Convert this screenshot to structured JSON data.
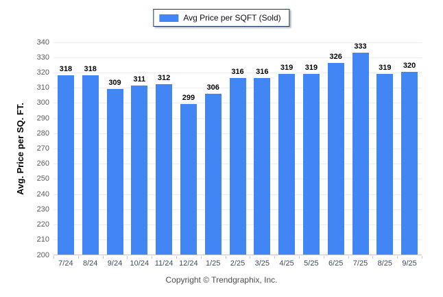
{
  "legend": {
    "label": "Avg Price per SQFT (Sold)"
  },
  "colors": {
    "bar": "#4285f4",
    "legend_border": "#17365d",
    "grid": "#ededed",
    "axis": "#c9c9c9"
  },
  "chart_data": {
    "type": "bar",
    "categories": [
      "7/24",
      "8/24",
      "9/24",
      "10/24",
      "11/24",
      "12/24",
      "1/25",
      "2/25",
      "3/25",
      "4/25",
      "5/25",
      "6/25",
      "7/25",
      "8/25",
      "9/25"
    ],
    "values": [
      318,
      318,
      309,
      311,
      312,
      299,
      306,
      316,
      316,
      319,
      319,
      326,
      333,
      319,
      320
    ],
    "title": "",
    "xlabel": "",
    "ylabel": "Avg. Price per SQ. FT.",
    "ylim": [
      200,
      340
    ],
    "ytick_step": 10,
    "grid": true,
    "legend_entries": [
      "Avg Price per SQFT (Sold)"
    ],
    "legend_position": "top-center",
    "bar_color": "#4285f4"
  },
  "footer": {
    "copyright": "Copyright © Trendgraphix, Inc."
  }
}
